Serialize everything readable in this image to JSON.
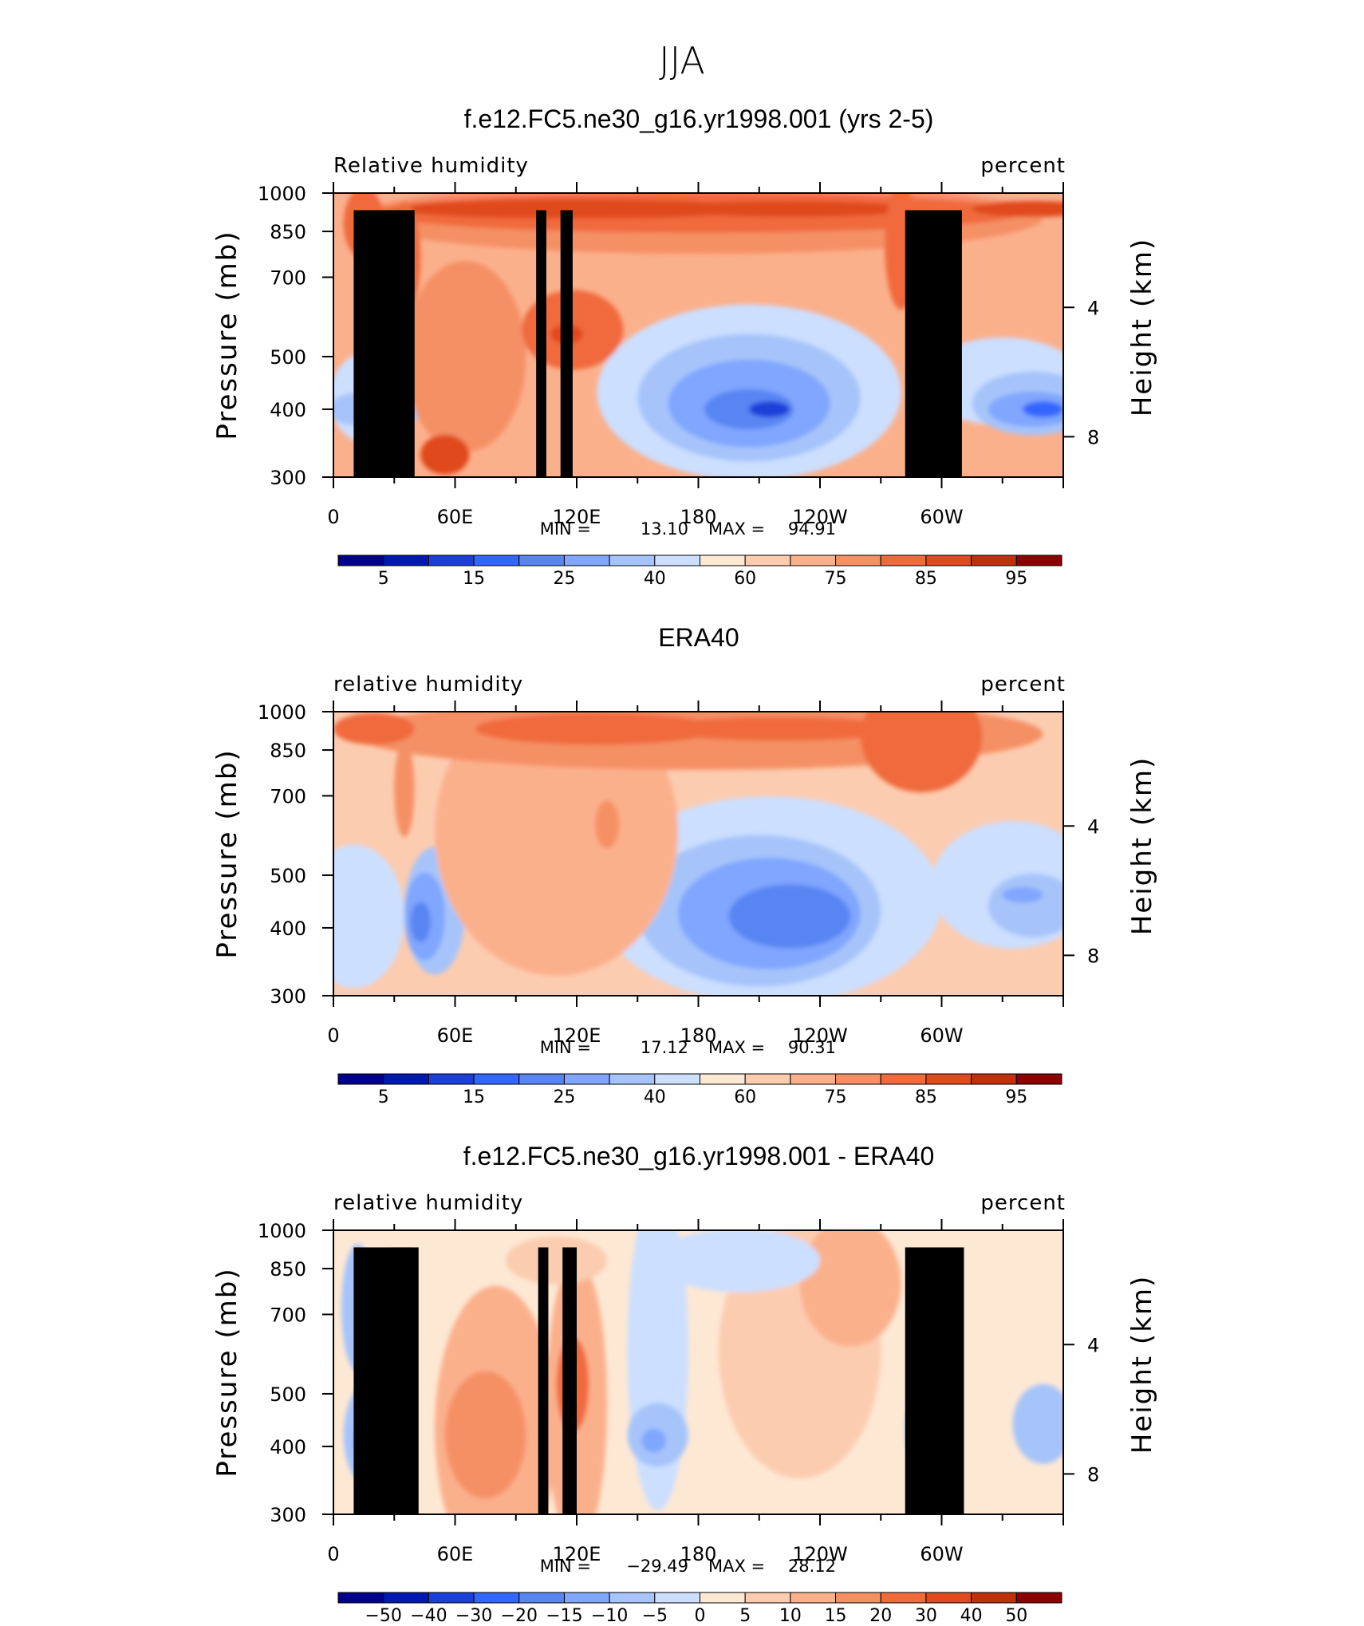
{
  "figure_title": "JJA",
  "chart_data": [
    {
      "type": "heatmap",
      "title": "f.e12.FC5.ne30_g16.yr1998.001 (yrs 2-5)",
      "left_string": "Relative humidity",
      "right_string": "percent",
      "ylabel": "Pressure (mb)",
      "ylabel_right": "Height (km)",
      "xlim": [
        0,
        360
      ],
      "ylim": [
        1000,
        300
      ],
      "x_ticks": [
        "0",
        "60E",
        "120E",
        "180",
        "120W",
        "60W"
      ],
      "y_ticks": [
        "300",
        "400",
        "500",
        "700",
        "850",
        "1000"
      ],
      "y_right_ticks": [
        "8",
        "4"
      ],
      "stats": {
        "min_label": "MIN =",
        "min": "13.10",
        "max_label": "MAX =",
        "max": "94.91"
      },
      "colorbar_labels": [
        "5",
        "15",
        "25",
        "40",
        "60",
        "75",
        "85",
        "95"
      ],
      "colorbar_colors": [
        "#00008c",
        "#0019b3",
        "#1a40d9",
        "#3366ff",
        "#5985f2",
        "#80a6ff",
        "#a6c4fa",
        "#ccdfff",
        "#fde8d4",
        "#fcccb0",
        "#fbb08c",
        "#f59065",
        "#f06a3c",
        "#e04a1f",
        "#c0300d",
        "#8c0000"
      ],
      "terrain": true
    },
    {
      "type": "heatmap",
      "title": "ERA40",
      "left_string": "relative humidity",
      "right_string": "percent",
      "ylabel": "Pressure (mb)",
      "ylabel_right": "Height (km)",
      "xlim": [
        0,
        360
      ],
      "ylim": [
        1000,
        300
      ],
      "x_ticks": [
        "0",
        "60E",
        "120E",
        "180",
        "120W",
        "60W"
      ],
      "y_ticks": [
        "300",
        "400",
        "500",
        "700",
        "850",
        "1000"
      ],
      "y_right_ticks": [
        "8",
        "4"
      ],
      "stats": {
        "min_label": "MIN =",
        "min": "17.12",
        "max_label": "MAX =",
        "max": "90.31"
      },
      "colorbar_labels": [
        "5",
        "15",
        "25",
        "40",
        "60",
        "75",
        "85",
        "95"
      ],
      "colorbar_colors": [
        "#00008c",
        "#0019b3",
        "#1a40d9",
        "#3366ff",
        "#5985f2",
        "#80a6ff",
        "#a6c4fa",
        "#ccdfff",
        "#fde8d4",
        "#fcccb0",
        "#fbb08c",
        "#f59065",
        "#f06a3c",
        "#e04a1f",
        "#c0300d",
        "#8c0000"
      ],
      "terrain": false
    },
    {
      "type": "heatmap",
      "title": "f.e12.FC5.ne30_g16.yr1998.001 - ERA40",
      "left_string": "relative humidity",
      "right_string": "percent",
      "ylabel": "Pressure (mb)",
      "ylabel_right": "Height (km)",
      "xlim": [
        0,
        360
      ],
      "ylim": [
        1000,
        300
      ],
      "x_ticks": [
        "0",
        "60E",
        "120E",
        "180",
        "120W",
        "60W"
      ],
      "y_ticks": [
        "300",
        "400",
        "500",
        "700",
        "850",
        "1000"
      ],
      "y_right_ticks": [
        "8",
        "4"
      ],
      "stats": {
        "min_label": "MIN =",
        "min": "−29.49",
        "max_label": "MAX =",
        "max": "28.12"
      },
      "colorbar_labels": [
        "−50",
        "−40",
        "−30",
        "−20",
        "−15",
        "−10",
        "−5",
        "0",
        "5",
        "10",
        "15",
        "20",
        "30",
        "40",
        "50"
      ],
      "colorbar_colors": [
        "#00008c",
        "#0019b3",
        "#1a40d9",
        "#3366ff",
        "#5985f2",
        "#80a6ff",
        "#a6c4fa",
        "#ccdfff",
        "#fde8d4",
        "#fcccb0",
        "#fbb08c",
        "#f59065",
        "#f06a3c",
        "#e04a1f",
        "#c0300d",
        "#8c0000"
      ],
      "terrain": true
    }
  ]
}
